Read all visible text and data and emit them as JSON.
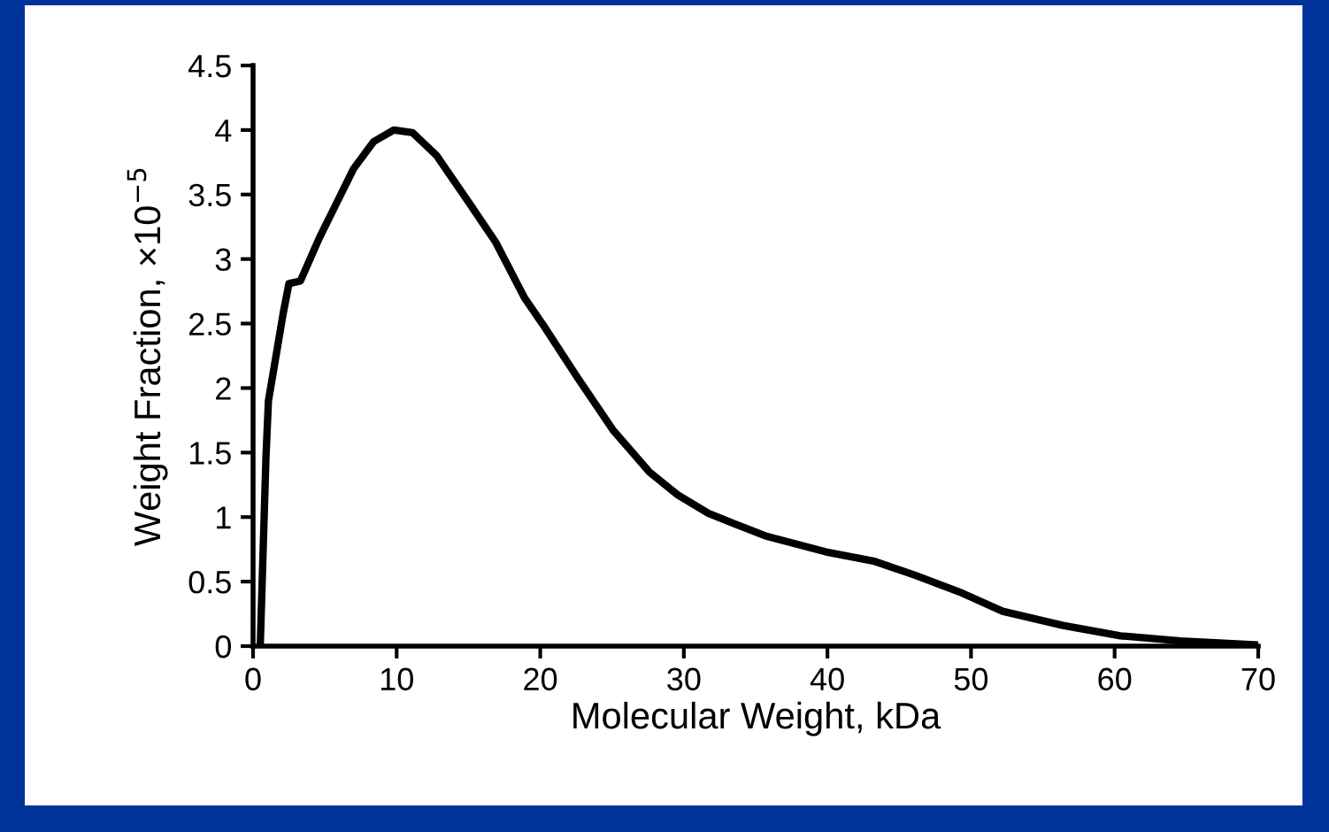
{
  "chart_data": {
    "type": "line",
    "xlabel": "Molecular Weight, kDa",
    "ylabel": "Weight Fraction, ×10$^{−5}$",
    "series": [
      {
        "color": "#000000",
        "x": [
          0.5,
          0.9,
          1.07,
          2.1,
          2.5,
          3.3,
          4.6,
          5.8,
          7.0,
          8.4,
          9.8,
          11.1,
          12.8,
          15.2,
          16.9,
          18.9,
          20.2,
          22.6,
          25.1,
          27.6,
          29.6,
          31.7,
          33.5,
          35.8,
          39.9,
          43.2,
          46.1,
          49.4,
          52.2,
          56.4,
          60.4,
          64.6,
          69.9
        ],
        "values": [
          0,
          1.47,
          1.9,
          2.58,
          2.81,
          2.83,
          3.16,
          3.43,
          3.7,
          3.91,
          4.0,
          3.98,
          3.8,
          3.41,
          3.13,
          2.7,
          2.49,
          2.08,
          1.67,
          1.35,
          1.17,
          1.03,
          0.95,
          0.85,
          0.73,
          0.66,
          0.55,
          0.41,
          0.27,
          0.16,
          0.08,
          0.04,
          0.01
        ]
      }
    ],
    "xlim": [
      0,
      70
    ],
    "xticks": [
      0,
      10,
      20,
      30,
      40,
      50,
      60,
      70
    ],
    "ylim": [
      0,
      4.5
    ],
    "yticks": [
      0,
      0.5,
      1,
      1.5,
      2,
      2.5,
      3,
      3.5,
      4,
      4.5
    ],
    "grid": false,
    "legend": false,
    "marker": "none",
    "line_style": "solid"
  }
}
